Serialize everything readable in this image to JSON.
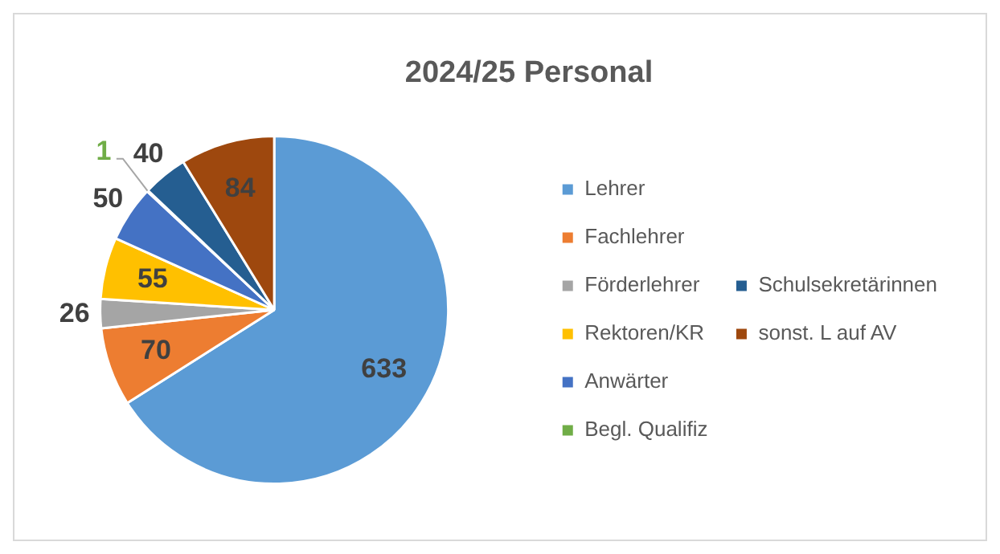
{
  "chart_data": {
    "type": "pie",
    "title": "2024/25 Personal",
    "categories": [
      "Lehrer",
      "Fachlehrer",
      "Förderlehrer",
      "Rektoren/KR",
      "Anwärter",
      "Begl. Qualifiz",
      "Schulsekretärinnen",
      "sonst. L auf AV"
    ],
    "values": [
      633,
      70,
      26,
      55,
      50,
      1,
      40,
      84
    ],
    "colors": [
      "#5b9bd5",
      "#ed7d31",
      "#a5a5a5",
      "#ffc000",
      "#4472c4",
      "#70ad47",
      "#255e91",
      "#9e480e"
    ],
    "data_labels": true,
    "legend": "right"
  }
}
